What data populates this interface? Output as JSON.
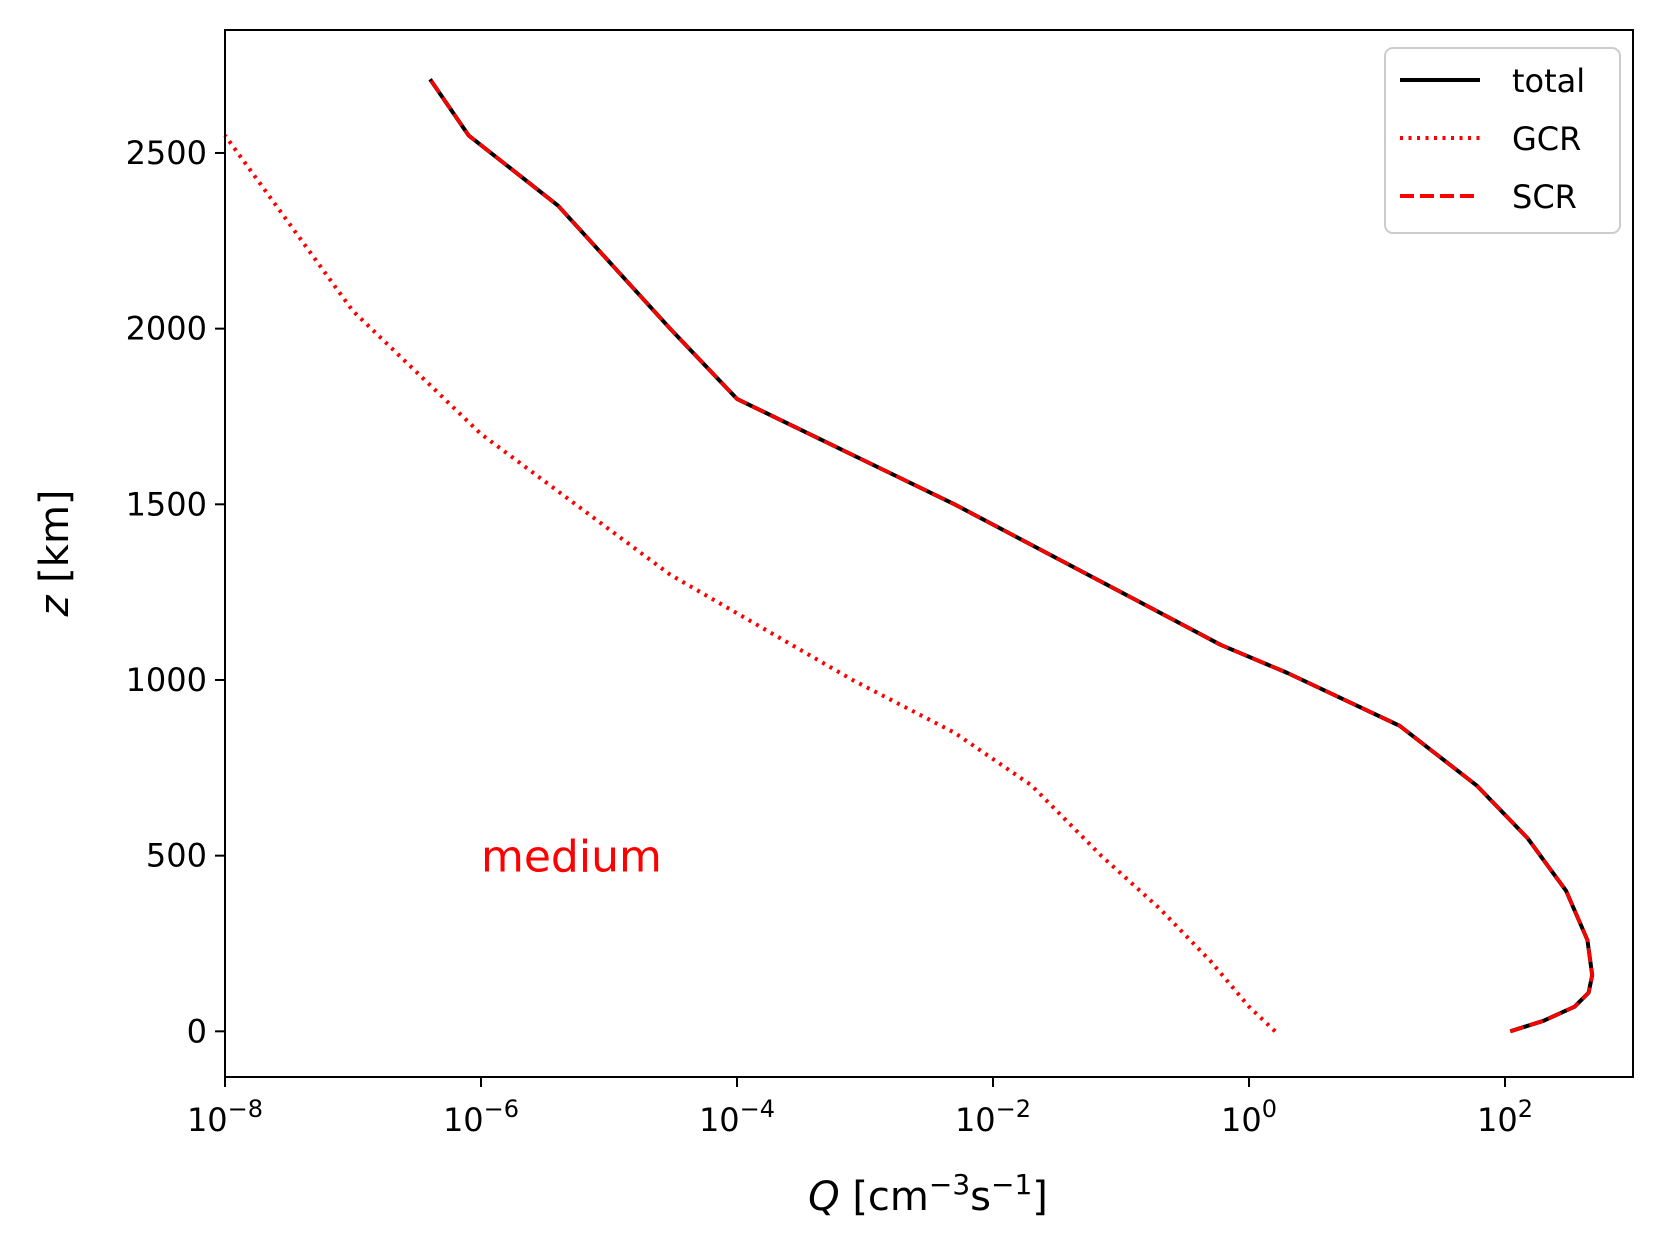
{
  "chart_data": {
    "type": "line",
    "title": "",
    "xlabel": "Q [cm⁻³s⁻¹]",
    "xlabel_parts": {
      "var": "Q",
      "pre": "[cm",
      "exp1": "−3",
      "mid": "s",
      "exp2": "−1",
      "post": "]"
    },
    "ylabel": "z [km]",
    "ylabel_parts": {
      "var": "z",
      "rest": "[km]"
    },
    "xscale": "log",
    "xlim": [
      1e-08,
      1000
    ],
    "ylim": [
      -130,
      2850
    ],
    "x_ticks": [
      {
        "value": 1e-08,
        "base": "10",
        "exp": "−8"
      },
      {
        "value": 1e-06,
        "base": "10",
        "exp": "−6"
      },
      {
        "value": 0.0001,
        "base": "10",
        "exp": "−4"
      },
      {
        "value": 0.01,
        "base": "10",
        "exp": "−2"
      },
      {
        "value": 1,
        "base": "10",
        "exp": "0"
      },
      {
        "value": 100,
        "base": "10",
        "exp": "2"
      }
    ],
    "y_ticks": [
      {
        "value": 0,
        "label": "0"
      },
      {
        "value": 500,
        "label": "500"
      },
      {
        "value": 1000,
        "label": "1000"
      },
      {
        "value": 1500,
        "label": "1500"
      },
      {
        "value": 2000,
        "label": "2000"
      },
      {
        "value": 2500,
        "label": "2500"
      }
    ],
    "grid": false,
    "legend_position": "top-right",
    "annotation": {
      "text": "medium",
      "x": 1e-06,
      "y": 500,
      "color": "#ff0000"
    },
    "series": [
      {
        "name": "total",
        "color": "#000000",
        "style": "solid",
        "points": [
          [
            110,
            0
          ],
          [
            200,
            30
          ],
          [
            350,
            70
          ],
          [
            450,
            110
          ],
          [
            480,
            160
          ],
          [
            440,
            260
          ],
          [
            300,
            400
          ],
          [
            150,
            550
          ],
          [
            60,
            700
          ],
          [
            15,
            870
          ],
          [
            2,
            1020
          ],
          [
            0.6,
            1100
          ],
          [
            0.1,
            1250
          ],
          [
            0.005,
            1500
          ],
          [
            0.0001,
            1800
          ],
          [
            3e-05,
            2000
          ],
          [
            4e-06,
            2350
          ],
          [
            8e-07,
            2550
          ],
          [
            4e-07,
            2710
          ]
        ]
      },
      {
        "name": "GCR",
        "color": "#ff0000",
        "style": "dotted",
        "points": [
          [
            1.6,
            0
          ],
          [
            1.0,
            70
          ],
          [
            0.5,
            200
          ],
          [
            0.2,
            350
          ],
          [
            0.07,
            500
          ],
          [
            0.02,
            700
          ],
          [
            0.005,
            850
          ],
          [
            0.0008,
            1000
          ],
          [
            3e-05,
            1300
          ],
          [
            1e-06,
            1700
          ],
          [
            1e-07,
            2050
          ],
          [
            1e-08,
            2550
          ]
        ]
      },
      {
        "name": "SCR",
        "color": "#ff0000",
        "style": "dashed",
        "points": [
          [
            110,
            0
          ],
          [
            200,
            30
          ],
          [
            350,
            70
          ],
          [
            450,
            110
          ],
          [
            480,
            160
          ],
          [
            440,
            260
          ],
          [
            300,
            400
          ],
          [
            150,
            550
          ],
          [
            60,
            700
          ],
          [
            15,
            870
          ],
          [
            2,
            1020
          ],
          [
            0.6,
            1100
          ],
          [
            0.1,
            1250
          ],
          [
            0.005,
            1500
          ],
          [
            0.0001,
            1800
          ],
          [
            3e-05,
            2000
          ],
          [
            4e-06,
            2350
          ],
          [
            8e-07,
            2550
          ],
          [
            4e-07,
            2710
          ]
        ]
      }
    ]
  }
}
